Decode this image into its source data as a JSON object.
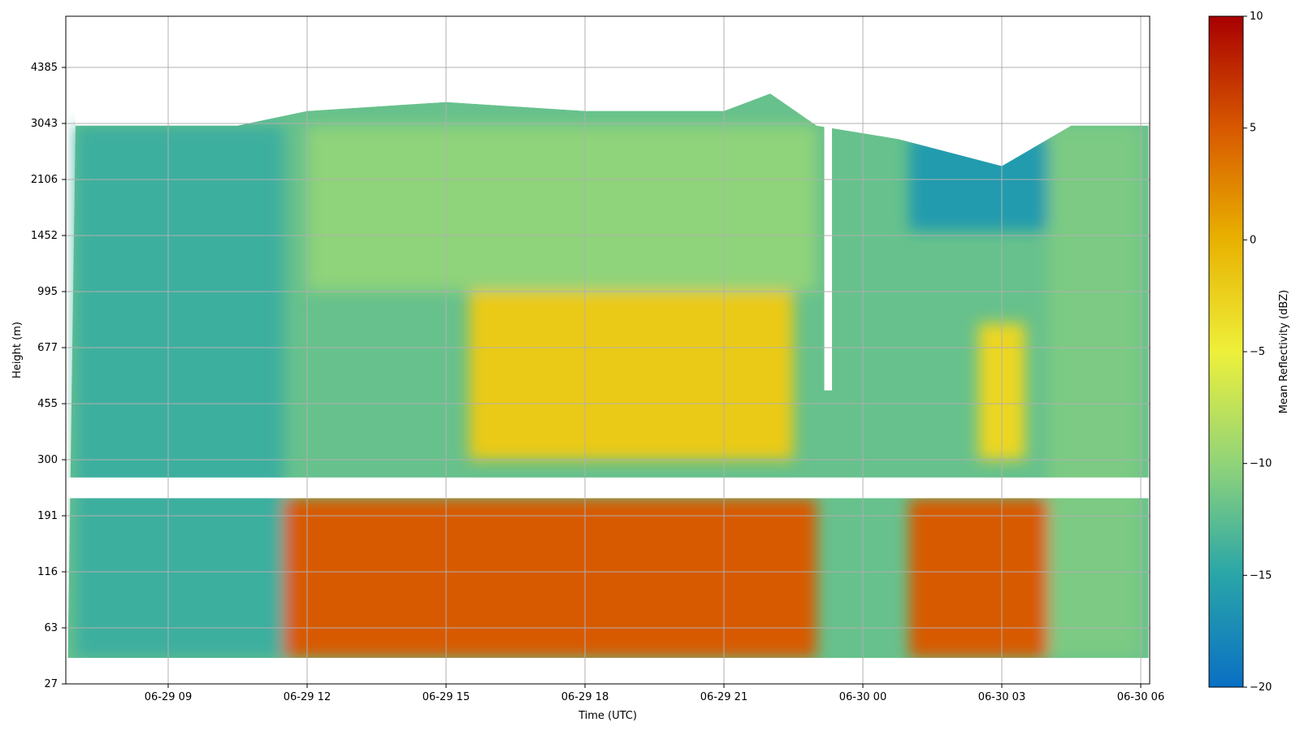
{
  "chart_data": {
    "type": "heatmap",
    "title": "",
    "xlabel": "Time (UTC)",
    "ylabel": "Height (m)",
    "colorbar_label": "Mean Reflectivity (dBZ)",
    "x_ticks": [
      "06-29 09",
      "06-29 12",
      "06-29 15",
      "06-29 18",
      "06-29 21",
      "06-30 00",
      "06-30 03",
      "06-30 06"
    ],
    "y_ticks": [
      "27",
      "63",
      "116",
      "191",
      "300",
      "455",
      "677",
      "995",
      "1452",
      "2106",
      "3043",
      "4385"
    ],
    "colorbar_ticks": [
      "10",
      "5",
      "0",
      "−5",
      "−10",
      "−15",
      "−20"
    ],
    "zlim": [
      -20,
      10
    ],
    "grid": true,
    "colormap": [
      "#0a6fc4",
      "#2aa6a8",
      "#8fd37a",
      "#eef03a",
      "#e8b000",
      "#d85a00",
      "#a80000"
    ],
    "time_range": [
      "06-29 06:50",
      "06-30 06:10"
    ],
    "gaps": {
      "height_band_missing_m": [
        220,
        260
      ],
      "time_gap": [
        "06-29 23:10",
        "06-29 23:20"
      ]
    },
    "cloud_top_height_m": [
      [
        "06-29 07:00",
        3000
      ],
      [
        "06-29 10:30",
        3000
      ],
      [
        "06-29 12:00",
        3300
      ],
      [
        "06-29 15:00",
        3500
      ],
      [
        "06-29 18:00",
        3300
      ],
      [
        "06-29 21:00",
        3300
      ],
      [
        "06-29 22:00",
        3700
      ],
      [
        "06-29 23:00",
        3000
      ],
      [
        "06-30 00:45",
        2750
      ],
      [
        "06-30 03:00",
        2300
      ],
      [
        "06-30 04:30",
        3000
      ],
      [
        "06-30 06:00",
        3000
      ]
    ],
    "regions": [
      {
        "time": [
          "06-29 07:00",
          "06-29 11:30"
        ],
        "height_m": [
          40,
          3000
        ],
        "mean_dbz": -14
      },
      {
        "time": [
          "06-29 11:30",
          "06-29 23:00"
        ],
        "height_m": [
          40,
          220
        ],
        "mean_dbz": 5
      },
      {
        "time": [
          "06-29 15:30",
          "06-29 22:30"
        ],
        "height_m": [
          300,
          1000
        ],
        "mean_dbz": -2
      },
      {
        "time": [
          "06-29 12:00",
          "06-29 23:00"
        ],
        "height_m": [
          1000,
          3000
        ],
        "mean_dbz": -10
      },
      {
        "time": [
          "06-30 01:00",
          "06-30 04:00"
        ],
        "height_m": [
          40,
          220
        ],
        "mean_dbz": 5
      },
      {
        "time": [
          "06-30 02:30",
          "06-30 03:30"
        ],
        "height_m": [
          300,
          800
        ],
        "mean_dbz": -3
      },
      {
        "time": [
          "06-30 01:00",
          "06-30 04:00"
        ],
        "height_m": [
          1500,
          2800
        ],
        "mean_dbz": -16
      },
      {
        "time": [
          "06-30 04:00",
          "06-30 06:00"
        ],
        "height_m": [
          40,
          3000
        ],
        "mean_dbz": -11
      }
    ]
  }
}
